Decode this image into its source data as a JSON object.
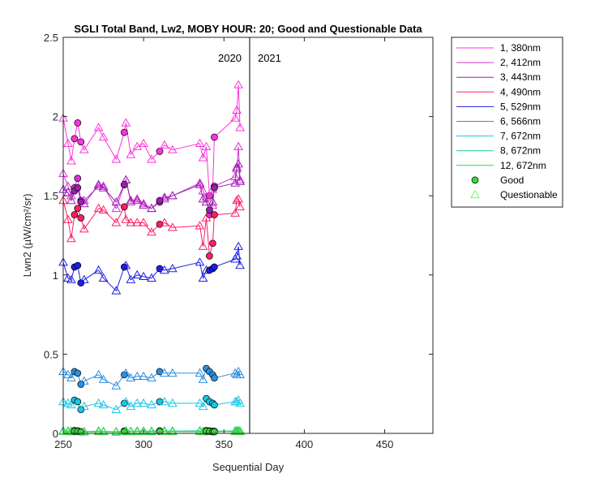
{
  "chart_data": {
    "type": "line",
    "title": "SGLI Total Band, Lw2, MOBY HOUR: 20;  Good and Questionable Data",
    "xlabel": "Sequential Day",
    "ylabel": "Lwn2 (µW/cm²/sr)",
    "xlim": [
      250,
      480
    ],
    "ylim": [
      0,
      2.5
    ],
    "xticks": [
      250,
      300,
      350,
      400,
      450
    ],
    "yticks": [
      0,
      0.5,
      1,
      1.5,
      2,
      2.5
    ],
    "ytick_labels": [
      "0",
      "0.5",
      "1",
      "1.5",
      "2",
      "2.5"
    ],
    "grid": false,
    "legend_position": "outside-right",
    "year_divider_x": 366,
    "year_labels": [
      "2020",
      "2021"
    ],
    "series": [
      {
        "name": "1, 380nm",
        "color": "#ff33dd",
        "x": [
          250,
          253,
          255,
          257,
          259,
          261,
          263,
          272,
          275,
          283,
          288,
          289,
          292,
          296,
          300,
          305,
          310,
          313,
          318,
          335,
          337,
          339,
          341,
          343,
          344,
          357,
          358,
          359,
          360
        ],
        "y": [
          1.99,
          1.83,
          1.72,
          1.86,
          1.96,
          1.84,
          1.79,
          1.93,
          1.87,
          1.73,
          1.9,
          1.96,
          1.76,
          1.81,
          1.83,
          1.73,
          1.78,
          1.82,
          1.79,
          1.83,
          1.74,
          1.81,
          1.5,
          1.54,
          1.87,
          1.99,
          2.04,
          2.2,
          1.93
        ],
        "flags": [
          "Q",
          "Q",
          "Q",
          "G",
          "G",
          "G",
          "Q",
          "Q",
          "Q",
          "Q",
          "G",
          "Q",
          "Q",
          "Q",
          "Q",
          "Q",
          "G",
          "Q",
          "Q",
          "Q",
          "Q",
          "Q",
          "G",
          "Q",
          "G",
          "Q",
          "Q",
          "Q",
          "Q"
        ]
      },
      {
        "name": "2, 412nm",
        "color": "#d433d4",
        "x": [
          250,
          253,
          255,
          257,
          259,
          261,
          263,
          272,
          275,
          283,
          288,
          289,
          292,
          296,
          300,
          305,
          310,
          313,
          318,
          335,
          337,
          339,
          341,
          343,
          344,
          357,
          358,
          359,
          360
        ],
        "y": [
          1.64,
          1.56,
          1.5,
          1.55,
          1.61,
          1.47,
          1.47,
          1.56,
          1.56,
          1.42,
          1.57,
          1.6,
          1.46,
          1.48,
          1.45,
          1.42,
          1.46,
          1.48,
          1.5,
          1.58,
          1.53,
          1.49,
          1.38,
          1.44,
          1.56,
          1.62,
          1.67,
          1.81,
          1.6
        ],
        "flags": [
          "Q",
          "Q",
          "Q",
          "G",
          "G",
          "G",
          "Q",
          "Q",
          "Q",
          "Q",
          "G",
          "Q",
          "Q",
          "Q",
          "Q",
          "Q",
          "G",
          "Q",
          "Q",
          "Q",
          "Q",
          "Q",
          "G",
          "Q",
          "G",
          "Q",
          "Q",
          "Q",
          "Q"
        ]
      },
      {
        "name": "3, 443nm",
        "color": "#9b1fb0",
        "x": [
          250,
          253,
          255,
          257,
          259,
          261,
          263,
          272,
          275,
          283,
          288,
          289,
          292,
          296,
          300,
          305,
          310,
          313,
          318,
          335,
          337,
          339,
          341,
          343,
          344,
          357,
          358,
          359,
          360
        ],
        "y": [
          1.54,
          1.52,
          1.47,
          1.53,
          1.55,
          1.46,
          1.45,
          1.57,
          1.55,
          1.46,
          1.57,
          1.6,
          1.47,
          1.47,
          1.44,
          1.42,
          1.47,
          1.49,
          1.5,
          1.57,
          1.48,
          1.46,
          1.41,
          1.46,
          1.55,
          1.58,
          1.68,
          1.7,
          1.59
        ],
        "flags": [
          "Q",
          "Q",
          "Q",
          "G",
          "G",
          "G",
          "Q",
          "Q",
          "Q",
          "Q",
          "G",
          "Q",
          "Q",
          "Q",
          "Q",
          "Q",
          "G",
          "Q",
          "Q",
          "Q",
          "Q",
          "Q",
          "G",
          "Q",
          "G",
          "Q",
          "Q",
          "Q",
          "Q"
        ]
      },
      {
        "name": "4, 490nm",
        "color": "#ff1e63",
        "x": [
          250,
          253,
          255,
          257,
          259,
          261,
          263,
          272,
          275,
          283,
          288,
          289,
          292,
          296,
          300,
          305,
          310,
          313,
          318,
          335,
          337,
          339,
          341,
          343,
          344,
          357,
          358,
          359,
          360
        ],
        "y": [
          1.47,
          1.35,
          1.23,
          1.38,
          1.42,
          1.36,
          1.29,
          1.42,
          1.41,
          1.33,
          1.43,
          1.35,
          1.33,
          1.33,
          1.33,
          1.27,
          1.32,
          1.33,
          1.3,
          1.31,
          1.18,
          1.36,
          1.12,
          1.2,
          1.38,
          1.39,
          1.47,
          1.48,
          1.43
        ],
        "flags": [
          "Q",
          "Q",
          "Q",
          "G",
          "G",
          "G",
          "Q",
          "Q",
          "Q",
          "Q",
          "G",
          "Q",
          "Q",
          "Q",
          "Q",
          "Q",
          "G",
          "Q",
          "Q",
          "Q",
          "Q",
          "Q",
          "G",
          "G",
          "G",
          "Q",
          "Q",
          "Q",
          "Q"
        ]
      },
      {
        "name": "5, 529nm",
        "color": "#1e1ee6",
        "x": [
          250,
          253,
          255,
          257,
          259,
          261,
          263,
          272,
          275,
          283,
          288,
          289,
          292,
          296,
          300,
          305,
          310,
          313,
          318,
          335,
          337,
          339,
          341,
          343,
          344,
          357,
          358,
          359,
          360
        ],
        "y": [
          1.08,
          0.98,
          0.97,
          1.05,
          1.06,
          0.95,
          0.97,
          1.03,
          0.98,
          0.9,
          1.05,
          1.06,
          0.97,
          1.0,
          0.99,
          0.98,
          1.04,
          1.03,
          1.04,
          1.08,
          0.98,
          1.03,
          1.03,
          1.04,
          1.05,
          1.1,
          1.12,
          1.18,
          1.06
        ],
        "flags": [
          "Q",
          "Q",
          "Q",
          "G",
          "G",
          "G",
          "Q",
          "Q",
          "Q",
          "Q",
          "G",
          "Q",
          "Q",
          "Q",
          "Q",
          "Q",
          "G",
          "Q",
          "Q",
          "Q",
          "Q",
          "Q",
          "G",
          "G",
          "G",
          "Q",
          "Q",
          "Q",
          "Q"
        ]
      },
      {
        "name": "6, 566nm",
        "color": "#2a8fe0",
        "x": [
          250,
          253,
          255,
          257,
          259,
          261,
          263,
          272,
          275,
          283,
          288,
          289,
          292,
          296,
          300,
          305,
          310,
          313,
          318,
          335,
          337,
          339,
          341,
          343,
          344,
          357,
          358,
          359,
          360
        ],
        "y": [
          0.39,
          0.37,
          0.35,
          0.39,
          0.38,
          0.31,
          0.33,
          0.37,
          0.34,
          0.3,
          0.37,
          0.38,
          0.35,
          0.36,
          0.36,
          0.35,
          0.39,
          0.38,
          0.38,
          0.38,
          0.34,
          0.41,
          0.39,
          0.37,
          0.35,
          0.38,
          0.37,
          0.39,
          0.37
        ],
        "flags": [
          "Q",
          "Q",
          "Q",
          "G",
          "G",
          "G",
          "Q",
          "Q",
          "Q",
          "Q",
          "G",
          "Q",
          "Q",
          "Q",
          "Q",
          "Q",
          "G",
          "Q",
          "Q",
          "Q",
          "Q",
          "G",
          "G",
          "G",
          "G",
          "Q",
          "Q",
          "Q",
          "Q"
        ]
      },
      {
        "name": "7, 672nm",
        "color": "#17c8e6",
        "x": [
          250,
          253,
          255,
          257,
          259,
          261,
          263,
          272,
          275,
          283,
          288,
          289,
          292,
          296,
          300,
          305,
          310,
          313,
          318,
          335,
          337,
          339,
          341,
          343,
          344,
          357,
          358,
          359,
          360
        ],
        "y": [
          0.2,
          0.19,
          0.18,
          0.21,
          0.2,
          0.15,
          0.17,
          0.19,
          0.18,
          0.15,
          0.19,
          0.2,
          0.17,
          0.19,
          0.19,
          0.18,
          0.2,
          0.2,
          0.19,
          0.19,
          0.17,
          0.22,
          0.2,
          0.19,
          0.18,
          0.2,
          0.2,
          0.21,
          0.19
        ],
        "flags": [
          "Q",
          "Q",
          "Q",
          "G",
          "G",
          "G",
          "Q",
          "Q",
          "Q",
          "Q",
          "G",
          "Q",
          "Q",
          "Q",
          "Q",
          "Q",
          "G",
          "Q",
          "Q",
          "Q",
          "Q",
          "G",
          "G",
          "G",
          "G",
          "Q",
          "Q",
          "Q",
          "Q"
        ]
      },
      {
        "name": "8, 672nm",
        "color": "#17d28a",
        "x": [
          250,
          253,
          255,
          257,
          259,
          261,
          263,
          272,
          275,
          283,
          288,
          289,
          292,
          296,
          300,
          305,
          310,
          313,
          318,
          335,
          337,
          339,
          341,
          343,
          344,
          357,
          358,
          359,
          360
        ],
        "y": [
          0.016,
          0.015,
          0.014,
          0.018,
          0.016,
          0.01,
          0.012,
          0.015,
          0.013,
          0.011,
          0.015,
          0.016,
          0.013,
          0.015,
          0.015,
          0.014,
          0.016,
          0.016,
          0.015,
          0.016,
          0.013,
          0.018,
          0.016,
          0.014,
          0.014,
          0.016,
          0.016,
          0.017,
          0.015
        ],
        "flags": [
          "Q",
          "Q",
          "Q",
          "G",
          "G",
          "G",
          "Q",
          "Q",
          "Q",
          "Q",
          "G",
          "Q",
          "Q",
          "Q",
          "Q",
          "Q",
          "G",
          "Q",
          "Q",
          "Q",
          "Q",
          "G",
          "G",
          "G",
          "G",
          "Q",
          "Q",
          "Q",
          "Q"
        ]
      },
      {
        "name": "12, 672nm",
        "color": "#3ad43a",
        "x": [
          250,
          253,
          255,
          257,
          259,
          261,
          263,
          272,
          275,
          283,
          288,
          289,
          292,
          296,
          300,
          305,
          310,
          313,
          318,
          335,
          337,
          339,
          341,
          343,
          344,
          357,
          358,
          359,
          360
        ],
        "y": [
          0.012,
          0.011,
          0.01,
          0.014,
          0.012,
          0.008,
          0.009,
          0.011,
          0.01,
          0.008,
          0.011,
          0.012,
          0.01,
          0.011,
          0.011,
          0.01,
          0.012,
          0.012,
          0.011,
          0.012,
          0.01,
          0.014,
          0.012,
          0.01,
          0.01,
          0.012,
          0.012,
          0.013,
          0.011
        ],
        "flags": [
          "Q",
          "Q",
          "Q",
          "G",
          "G",
          "G",
          "Q",
          "Q",
          "Q",
          "Q",
          "G",
          "Q",
          "Q",
          "Q",
          "Q",
          "Q",
          "G",
          "Q",
          "Q",
          "Q",
          "Q",
          "G",
          "G",
          "G",
          "G",
          "Q",
          "Q",
          "Q",
          "Q"
        ]
      }
    ],
    "marker_legend": [
      {
        "label": "Good",
        "marker": "circle",
        "color": "#33dd33"
      },
      {
        "label": "Questionable",
        "marker": "triangle",
        "color": "#66ff66"
      }
    ]
  }
}
